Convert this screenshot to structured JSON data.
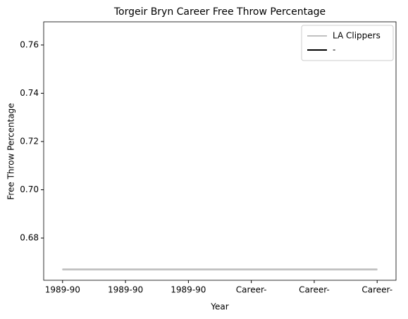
{
  "chart_data": {
    "type": "line",
    "title": "Torgeir Bryn Career Free Throw Percentage",
    "x_label": "Year",
    "y_label": "Free Throw Percentage",
    "categories": [
      "1989-90",
      "1989-90",
      "1989-90",
      "Career-",
      "Career-",
      "Career-"
    ],
    "series": [
      {
        "name": "LA Clippers",
        "color": "#c0c0c0",
        "values": [
          0.667,
          0.667,
          0.667,
          0.667,
          0.667,
          0.667
        ]
      },
      {
        "name": "-",
        "color": "#000000",
        "values": [
          0.667,
          0.667,
          0.667,
          0.667,
          0.667,
          0.667
        ]
      }
    ],
    "ylim": [
      0.6625,
      0.7696
    ],
    "yticks": [
      0.68,
      {
        "value": 0.7,
        "label": "0.70"
      },
      0.72,
      0.74,
      0.76
    ],
    "grid": false,
    "legend": "upper right"
  }
}
